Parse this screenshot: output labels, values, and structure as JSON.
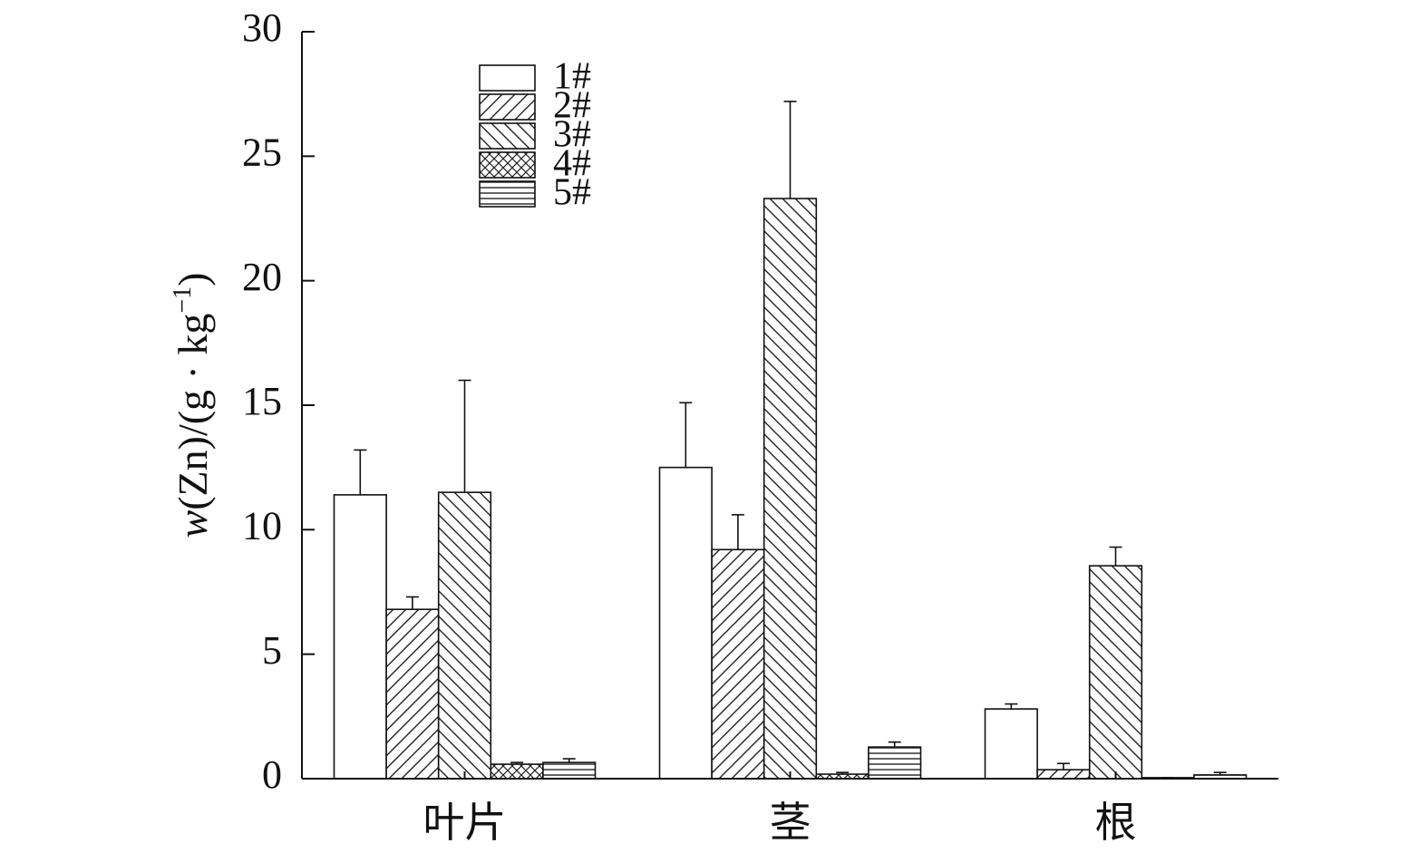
{
  "chart_data": {
    "type": "bar",
    "ylabel": {
      "italic": "w",
      "main": "(Zn)/(g · kg",
      "sup": "−1",
      "end": ")"
    },
    "categories": [
      "叶片",
      "茎",
      "根"
    ],
    "series": [
      {
        "name": "1#",
        "color": "#ffffff",
        "pattern": "none",
        "values": [
          11.4,
          12.5,
          2.8
        ],
        "errors": [
          1.8,
          2.6,
          0.2
        ]
      },
      {
        "name": "2#",
        "color": "#ffffff",
        "pattern": "diagonal",
        "values": [
          6.8,
          9.2,
          0.36
        ],
        "errors": [
          0.5,
          1.4,
          0.25
        ]
      },
      {
        "name": "3#",
        "color": "#ffffff",
        "pattern": "back-diagonal",
        "values": [
          11.5,
          23.3,
          8.55
        ],
        "errors": [
          4.5,
          3.9,
          0.75
        ]
      },
      {
        "name": "4#",
        "color": "#ffffff",
        "pattern": "cross",
        "values": [
          0.58,
          0.18,
          0.04
        ],
        "errors": [
          0.07,
          0.07,
          0
        ]
      },
      {
        "name": "5#",
        "color": "#ffffff",
        "pattern": "horizontal",
        "values": [
          0.65,
          1.27,
          0.15
        ],
        "errors": [
          0.15,
          0.2,
          0.1
        ]
      }
    ],
    "ylim": [
      0,
      30
    ],
    "yticks": [
      0,
      5,
      10,
      15,
      20,
      25,
      30
    ]
  }
}
